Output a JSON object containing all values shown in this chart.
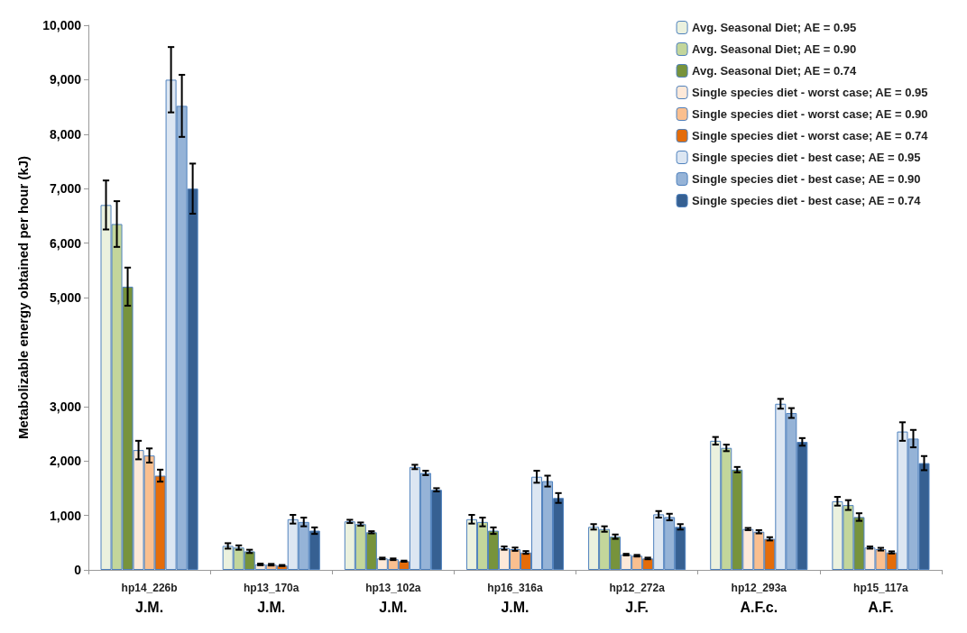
{
  "chart_data": {
    "type": "bar",
    "ylabel": "Metabolizable energy obtained per hour (kJ)",
    "categories": [
      "hp14_226b\nJ.M.",
      "hp13_170a\nJ.M.",
      "hp13_102a\nJ.M.",
      "hp16_316a\nJ.M.",
      "hp12_272a\nJ.F.",
      "hp12_293a\nA.F.c.",
      "hp15_117a\nA.F."
    ],
    "series": [
      {
        "name": "Avg. Seasonal Diet; AE = 0.95",
        "color": "#ebf1de",
        "values": [
          6700,
          440,
          890,
          930,
          790,
          2370,
          1260
        ],
        "errors": [
          450,
          50,
          30,
          80,
          50,
          70,
          80
        ]
      },
      {
        "name": "Avg. Seasonal Diet; AE = 0.90",
        "color": "#c3d69b",
        "values": [
          6350,
          410,
          840,
          880,
          750,
          2240,
          1190
        ],
        "errors": [
          420,
          40,
          30,
          80,
          50,
          60,
          90
        ]
      },
      {
        "name": "Avg. Seasonal Diet; AE = 0.74",
        "color": "#77933c",
        "values": [
          5200,
          340,
          690,
          720,
          610,
          1840,
          970
        ],
        "errors": [
          350,
          30,
          20,
          60,
          40,
          50,
          70
        ]
      },
      {
        "name": "Single species diet - worst case; AE = 0.95",
        "color": "#fde9d9",
        "values": [
          2200,
          100,
          210,
          400,
          280,
          750,
          410
        ],
        "errors": [
          170,
          15,
          15,
          30,
          15,
          20,
          20
        ]
      },
      {
        "name": "Single species diet - worst case; AE = 0.90",
        "color": "#fabf8f",
        "values": [
          2100,
          95,
          195,
          380,
          260,
          700,
          380
        ],
        "errors": [
          130,
          15,
          15,
          30,
          15,
          30,
          25
        ]
      },
      {
        "name": "Single species diet - worst case; AE = 0.74",
        "color": "#e46c0a",
        "values": [
          1730,
          80,
          160,
          320,
          210,
          570,
          320
        ],
        "errors": [
          110,
          10,
          10,
          25,
          15,
          30,
          20
        ]
      },
      {
        "name": "Single species diet - best case; AE = 0.95",
        "color": "#dce6f2",
        "values": [
          9000,
          930,
          1890,
          1710,
          1020,
          3050,
          2540
        ],
        "errors": [
          600,
          80,
          40,
          110,
          60,
          90,
          170
        ]
      },
      {
        "name": "Single species diet - best case; AE = 0.90",
        "color": "#95b3d7",
        "values": [
          8520,
          880,
          1780,
          1630,
          970,
          2880,
          2410
        ],
        "errors": [
          570,
          80,
          40,
          100,
          60,
          90,
          160
        ]
      },
      {
        "name": "Single species diet - best case; AE = 0.74",
        "color": "#366092",
        "values": [
          7000,
          720,
          1470,
          1320,
          790,
          2350,
          1960
        ],
        "errors": [
          460,
          60,
          30,
          90,
          50,
          70,
          130
        ]
      }
    ],
    "ylim": [
      0,
      10000
    ],
    "yticks": [
      0,
      {
        "value": 1000,
        "label": "1,000"
      },
      {
        "value": 2000,
        "label": "2,000"
      },
      {
        "value": 3000,
        "label": "3,000"
      },
      {
        "value": 5000,
        "label": "5,000"
      },
      {
        "value": 6000,
        "label": "6,000"
      },
      {
        "value": 7000,
        "label": "7,000"
      },
      {
        "value": 8000,
        "label": "8,000"
      },
      {
        "value": 9000,
        "label": "9,000"
      },
      {
        "value": 10000,
        "label": "10,000"
      }
    ],
    "grid": false,
    "legend": "top right"
  }
}
